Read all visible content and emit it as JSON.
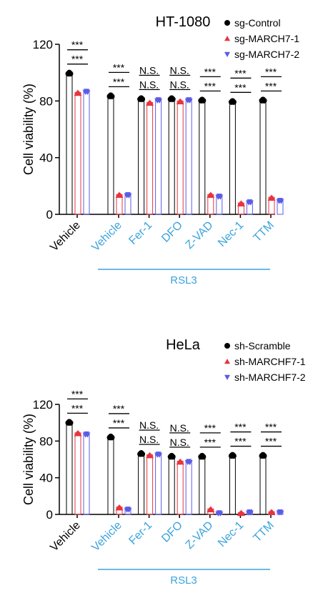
{
  "chart_data": [
    {
      "type": "bar",
      "title": "HT-1080",
      "y_label": "Cell viability (%)",
      "categories": [
        "Vehicle",
        "Vehicle",
        "Fer-1",
        "DFO",
        "Z-VAD",
        "Nec-1",
        "TTM"
      ],
      "label_colors": [
        "#000000",
        "#3ba3dc",
        "#3ba3dc",
        "#3ba3dc",
        "#3ba3dc",
        "#3ba3dc",
        "#3ba3dc"
      ],
      "group_label": "RSL3",
      "group_color": "#3ba3dc",
      "series": [
        {
          "name": "sg-Control",
          "color": "#000000",
          "values": [
            100,
            84,
            82,
            82,
            81,
            80,
            81
          ]
        },
        {
          "name": "sg-MARCH7-1",
          "color": "#e8343f",
          "values": [
            86,
            14,
            79,
            80,
            14,
            8,
            12
          ]
        },
        {
          "name": "sg-MARCH7-2",
          "color": "#5b5ce6",
          "values": [
            87,
            14,
            81,
            81,
            13,
            9,
            10
          ]
        }
      ],
      "annotations": [
        [
          "***",
          "***"
        ],
        [
          "***",
          "***"
        ],
        [
          "N.S.",
          "N.S."
        ],
        [
          "N.S.",
          "N.S."
        ],
        [
          "***",
          "***"
        ],
        [
          "***",
          "***"
        ],
        [
          "***",
          "***"
        ]
      ],
      "ylim": [
        0,
        120
      ],
      "yticks": [
        0,
        40,
        80,
        120
      ]
    },
    {
      "type": "bar",
      "title": "HeLa",
      "y_label": "Cell viability (%)",
      "categories": [
        "Vehicle",
        "Vehicle",
        "Fer-1",
        "DFO",
        "Z-VAD",
        "Nec-1",
        "TTM"
      ],
      "label_colors": [
        "#000000",
        "#3ba3dc",
        "#3ba3dc",
        "#3ba3dc",
        "#3ba3dc",
        "#3ba3dc",
        "#3ba3dc"
      ],
      "group_label": "RSL3",
      "group_color": "#3ba3dc",
      "series": [
        {
          "name": "sh-Scramble",
          "color": "#000000",
          "values": [
            101,
            85,
            67,
            64,
            64,
            65,
            65
          ]
        },
        {
          "name": "sh-MARCHF7-1",
          "color": "#e8343f",
          "values": [
            89,
            8,
            65,
            58,
            6,
            2,
            3
          ]
        },
        {
          "name": "sh-MARCHF7-2",
          "color": "#5b5ce6",
          "values": [
            88,
            6,
            66,
            58,
            2,
            3,
            3
          ]
        }
      ],
      "annotations": [
        [
          "***",
          "***"
        ],
        [
          "***",
          "***"
        ],
        [
          "N.S.",
          "N.S."
        ],
        [
          "N.S.",
          "N.S."
        ],
        [
          "***",
          "***"
        ],
        [
          "***",
          "***"
        ],
        [
          "***",
          "***"
        ]
      ],
      "ylim": [
        0,
        120
      ],
      "yticks": [
        0,
        40,
        80,
        120
      ]
    }
  ]
}
